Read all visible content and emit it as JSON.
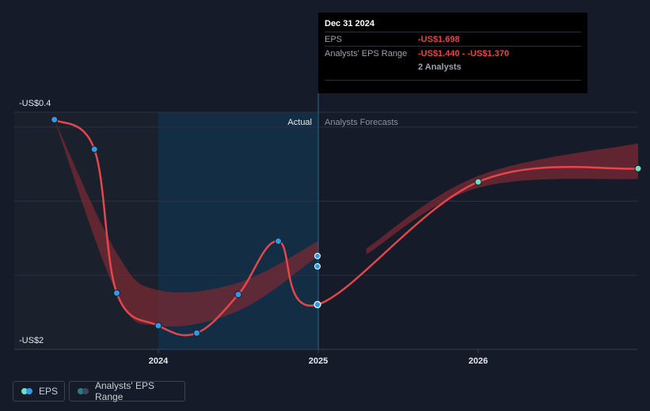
{
  "chart_data": {
    "type": "line",
    "y_axis_top_label": "-US$0.4",
    "y_axis_bottom_label": "-US$2",
    "ylim": [
      -2.0,
      -0.4
    ],
    "xlim": [
      2023.25,
      2027.0
    ],
    "x_ticks": [
      {
        "value": 2024,
        "label": "2024"
      },
      {
        "value": 2025,
        "label": "2025"
      },
      {
        "value": 2026,
        "label": "2026"
      }
    ],
    "region_labels": {
      "actual": "Actual",
      "forecast": "Analysts Forecasts"
    },
    "actual_split_x": 2025.0,
    "highlight_start_x": 2024.0,
    "series": [
      {
        "name": "EPS",
        "color": "#e4474b",
        "points": [
          {
            "x": 2023.35,
            "y": -0.45
          },
          {
            "x": 2023.6,
            "y": -0.65
          },
          {
            "x": 2023.74,
            "y": -1.62
          },
          {
            "x": 2024.0,
            "y": -1.84
          },
          {
            "x": 2024.24,
            "y": -1.89
          },
          {
            "x": 2024.5,
            "y": -1.63
          },
          {
            "x": 2024.75,
            "y": -1.27
          },
          {
            "x": 2024.995,
            "y": -1.698
          },
          {
            "x": 2026.0,
            "y": -0.87
          },
          {
            "x": 2027.0,
            "y": -0.78
          }
        ]
      }
    ],
    "range_band": {
      "name": "Analysts' EPS Range",
      "upper": [
        {
          "x": 2023.35,
          "y": -0.45
        },
        {
          "x": 2023.74,
          "y": -1.35
        },
        {
          "x": 2024.0,
          "y": -1.6
        },
        {
          "x": 2024.5,
          "y": -1.55
        },
        {
          "x": 2025.0,
          "y": -1.27
        }
      ],
      "lower": [
        {
          "x": 2023.35,
          "y": -0.45
        },
        {
          "x": 2023.74,
          "y": -1.62
        },
        {
          "x": 2024.0,
          "y": -1.84
        },
        {
          "x": 2024.5,
          "y": -1.74
        },
        {
          "x": 2025.0,
          "y": -1.37
        }
      ],
      "forecast_upper": [
        {
          "x": 2025.3,
          "y": -1.32
        },
        {
          "x": 2026.0,
          "y": -0.83
        },
        {
          "x": 2027.0,
          "y": -0.61
        }
      ],
      "forecast_lower": [
        {
          "x": 2025.3,
          "y": -1.36
        },
        {
          "x": 2026.0,
          "y": -0.91
        },
        {
          "x": 2027.0,
          "y": -0.85
        }
      ],
      "range_points": [
        {
          "x": 2024.995,
          "y": -1.44
        },
        {
          "x": 2024.995,
          "y": -1.37
        }
      ]
    }
  },
  "tooltip": {
    "date": "Dec 31 2024",
    "eps_label": "EPS",
    "eps_value": "-US$1.698",
    "range_label": "Analysts' EPS Range",
    "range_value": "-US$1.440 - -US$1.370",
    "analysts": "2 Analysts"
  },
  "legend": {
    "eps_label": "EPS",
    "range_label": "Analysts' EPS Range"
  },
  "colors": {
    "background": "#151b28",
    "eps_line": "#e4474b",
    "actual_point": "#2f9be6",
    "forecast_point": "#6fe0c0",
    "band": "#7a2a33",
    "highlight": "#13304a"
  }
}
